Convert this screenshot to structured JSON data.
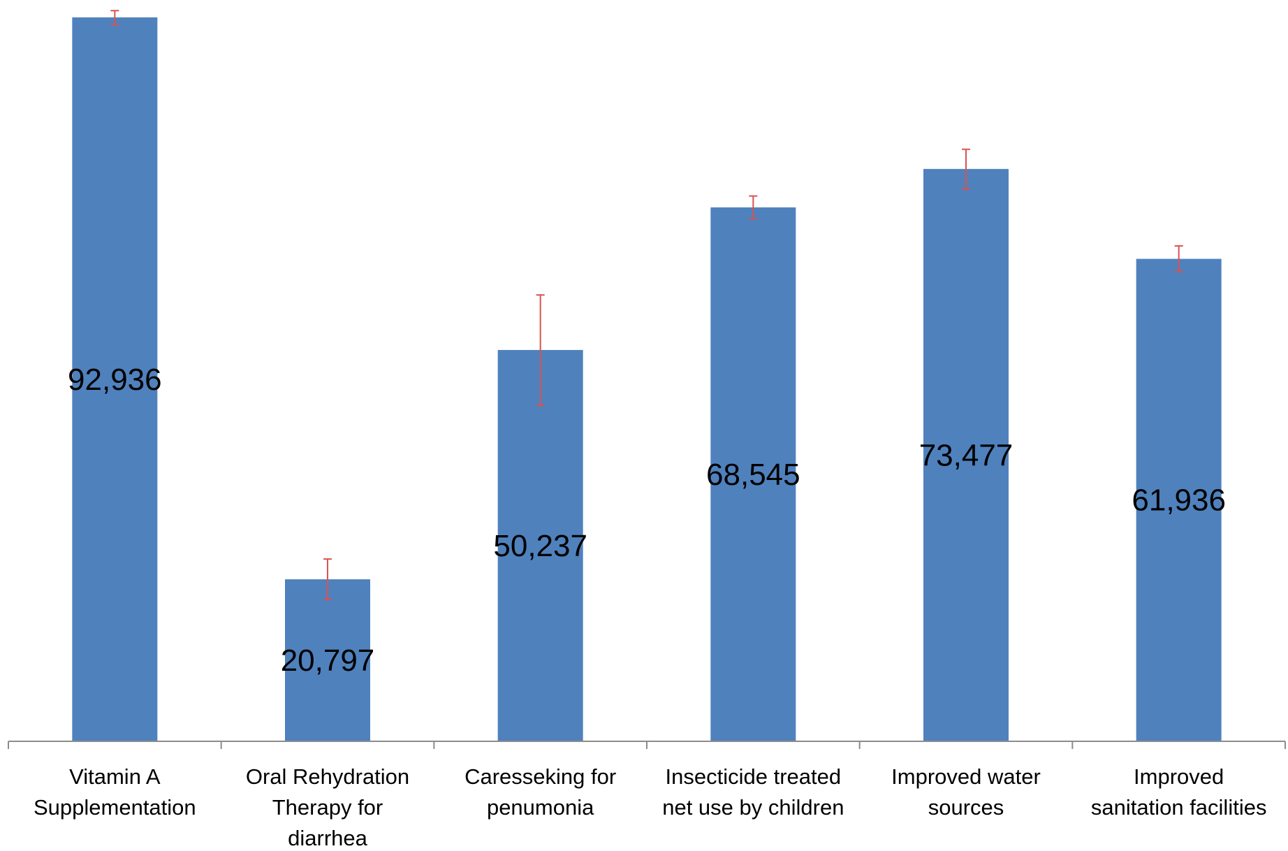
{
  "chart_data": {
    "type": "bar",
    "categories": [
      "Vitamin A Supplementation",
      "Oral Rehydration Therapy for diarrhea",
      "Caresseking for penumonia",
      "Insecticide treated net use by children",
      "Improved water sources",
      "Improved sanitation facilities"
    ],
    "category_lines": [
      [
        "Vitamin A",
        "Supplementation"
      ],
      [
        "Oral Rehydration",
        "Therapy for",
        "diarrhea"
      ],
      [
        "Caresseking for",
        "penumonia"
      ],
      [
        "Insecticide treated",
        "net use by children"
      ],
      [
        "Improved water",
        "sources"
      ],
      [
        "Improved",
        "sanitation facilities"
      ]
    ],
    "values": [
      92936,
      20797,
      50237,
      68545,
      73477,
      61936
    ],
    "data_labels": [
      "92,936",
      "20,797",
      "50,237",
      "68,545",
      "73,477",
      "61,936"
    ],
    "error_bars": [
      {
        "low": 92000,
        "high": 93800
      },
      {
        "low": 18200,
        "high": 23400
      },
      {
        "low": 43100,
        "high": 57300
      },
      {
        "low": 67100,
        "high": 70000
      },
      {
        "low": 70900,
        "high": 76000
      },
      {
        "low": 60300,
        "high": 63600
      }
    ],
    "ylim": [
      0,
      94000
    ],
    "title": "",
    "xlabel": "",
    "ylabel": "",
    "grid": false,
    "legend": "none",
    "colors": {
      "bar": "#4f81bd",
      "error_bar": "#d9534f",
      "axis": "#8c8c8c"
    }
  }
}
